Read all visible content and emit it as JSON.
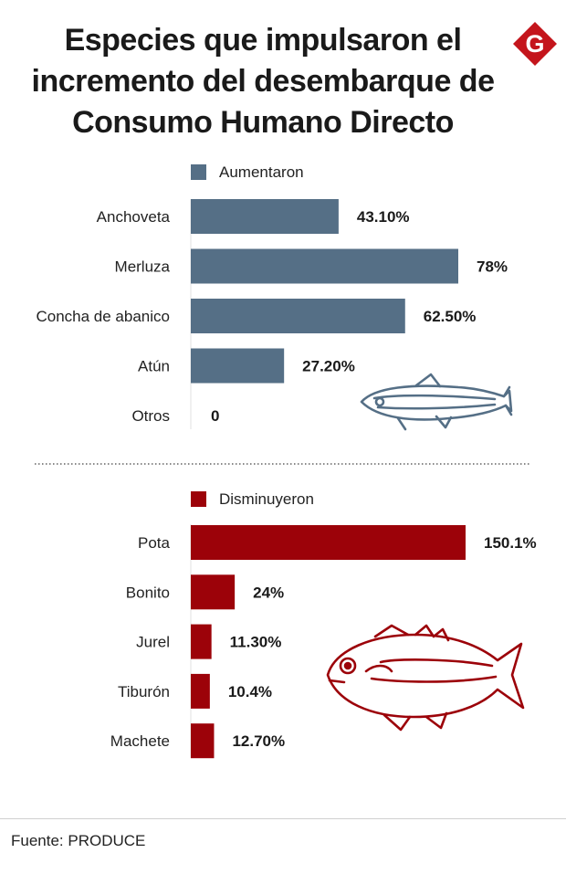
{
  "title_lines": [
    "Especies que impulsaron el",
    "incremento del desembarque de",
    "Consumo Humano Directo"
  ],
  "logo": {
    "letter": "G",
    "icon": "publisher-logo-icon",
    "color": "#c4151c"
  },
  "colors": {
    "increase": "#556f86",
    "decrease": "#9c0209"
  },
  "chart_data": [
    {
      "type": "bar",
      "orientation": "horizontal",
      "legend": "Aumentaron",
      "categories": [
        "Anchoveta",
        "Merluza",
        "Concha de abanico",
        "Atún",
        "Otros"
      ],
      "values": [
        43.1,
        78,
        62.5,
        27.2,
        0
      ],
      "value_labels": [
        "43.10%",
        "78%",
        "62.50%",
        "27.20%",
        "0"
      ],
      "xlim": [
        0,
        78
      ],
      "grid": false,
      "decoration": "anchovy-icon"
    },
    {
      "type": "bar",
      "orientation": "horizontal",
      "legend": "Disminuyeron",
      "categories": [
        "Pota",
        "Bonito",
        "Jurel",
        "Tiburón",
        "Machete"
      ],
      "values": [
        150.1,
        24,
        11.3,
        10.4,
        12.7
      ],
      "value_labels": [
        "150.1%",
        "24%",
        "11.30%",
        "10.4%",
        "12.70%"
      ],
      "xlim": [
        0,
        150.1
      ],
      "grid": false,
      "decoration": "horse-mackerel-icon"
    }
  ],
  "source": "Fuente: PRODUCE"
}
